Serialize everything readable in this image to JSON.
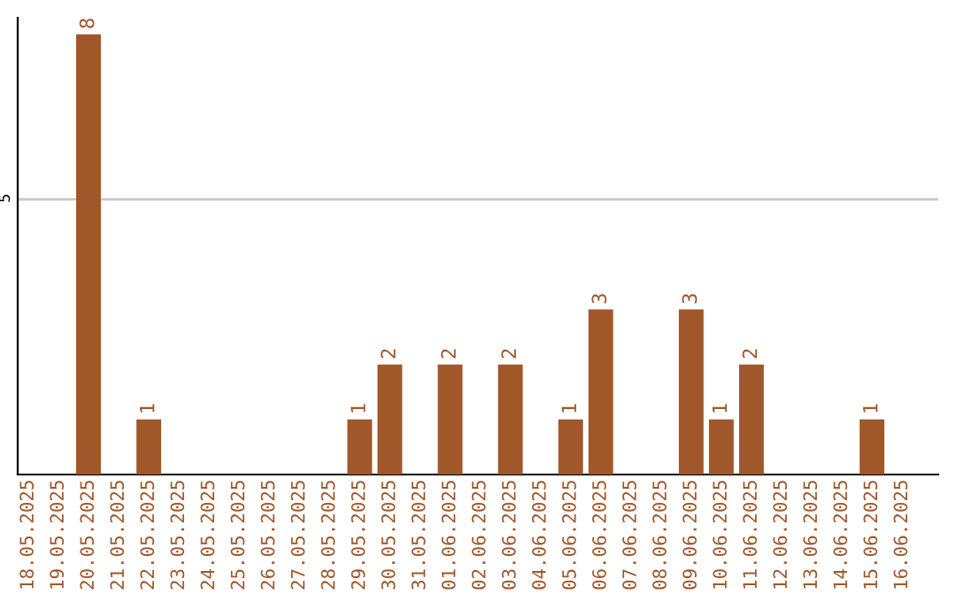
{
  "chart_data": {
    "type": "bar",
    "categories": [
      "18.05.2025",
      "19.05.2025",
      "20.05.2025",
      "21.05.2025",
      "22.05.2025",
      "23.05.2025",
      "24.05.2025",
      "25.05.2025",
      "26.05.2025",
      "27.05.2025",
      "28.05.2025",
      "29.05.2025",
      "30.05.2025",
      "31.05.2025",
      "01.06.2025",
      "02.06.2025",
      "03.06.2025",
      "04.06.2025",
      "05.06.2025",
      "06.06.2025",
      "07.06.2025",
      "08.06.2025",
      "09.06.2025",
      "10.06.2025",
      "11.06.2025",
      "12.06.2025",
      "13.06.2025",
      "14.06.2025",
      "15.06.2025",
      "16.06.2025"
    ],
    "values": [
      0,
      0,
      8,
      0,
      1,
      0,
      0,
      0,
      0,
      0,
      0,
      1,
      2,
      0,
      2,
      0,
      2,
      0,
      1,
      3,
      0,
      0,
      3,
      1,
      2,
      0,
      0,
      0,
      1,
      0
    ],
    "value_labels": [
      null,
      null,
      "8",
      null,
      "1",
      null,
      null,
      null,
      null,
      null,
      null,
      "1",
      "2",
      null,
      "2",
      null,
      "2",
      null,
      "1",
      "3",
      null,
      null,
      "3",
      "1",
      "2",
      null,
      null,
      null,
      "1",
      null
    ],
    "color": "#a0572a",
    "ylim": [
      0,
      8.3
    ],
    "yticks": [
      5
    ],
    "grid": "y"
  }
}
